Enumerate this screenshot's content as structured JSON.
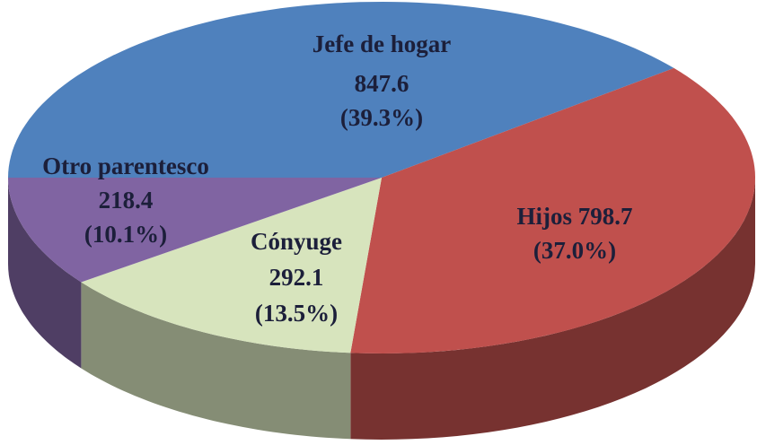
{
  "chart_data": {
    "type": "pie",
    "categories": [
      "Jefe de hogar",
      "Hijos",
      "Cónyuge",
      "Otro parentesco"
    ],
    "values": [
      847.6,
      798.7,
      292.1,
      218.4
    ],
    "percent_labels": [
      "(39.3%)",
      "(37.0%)",
      "(13.5%)",
      "(10.1%)"
    ],
    "colors": [
      "#4f81bd",
      "#c0504d",
      "#d7e4bd",
      "#8064a2"
    ]
  }
}
